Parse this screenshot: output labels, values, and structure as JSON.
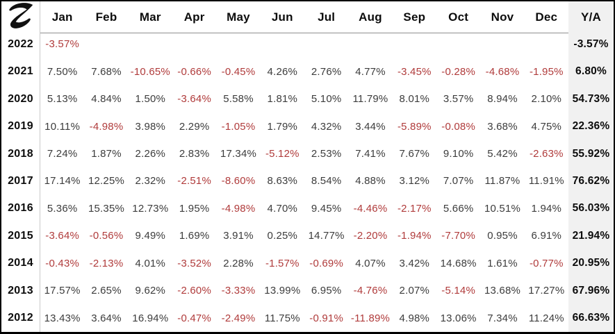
{
  "chart_data": {
    "type": "table",
    "columns": [
      "Jan",
      "Feb",
      "Mar",
      "Apr",
      "May",
      "Jun",
      "Jul",
      "Aug",
      "Sep",
      "Oct",
      "Nov",
      "Dec"
    ],
    "ya_label": "Y/A",
    "rows": [
      {
        "year": "2022",
        "monthly": [
          "-3.57%",
          "",
          "",
          "",
          "",
          "",
          "",
          "",
          "",
          "",
          "",
          ""
        ],
        "yearly": "-3.57%"
      },
      {
        "year": "2021",
        "monthly": [
          "7.50%",
          "7.68%",
          "-10.65%",
          "-0.66%",
          "-0.45%",
          "4.26%",
          "2.76%",
          "4.77%",
          "-3.45%",
          "-0.28%",
          "-4.68%",
          "-1.95%"
        ],
        "yearly": "6.80%"
      },
      {
        "year": "2020",
        "monthly": [
          "5.13%",
          "4.84%",
          "1.50%",
          "-3.64%",
          "5.58%",
          "1.81%",
          "5.10%",
          "11.79%",
          "8.01%",
          "3.57%",
          "8.94%",
          "2.10%"
        ],
        "yearly": "54.73%"
      },
      {
        "year": "2019",
        "monthly": [
          "10.11%",
          "-4.98%",
          "3.98%",
          "2.29%",
          "-1.05%",
          "1.79%",
          "4.32%",
          "3.44%",
          "-5.89%",
          "-0.08%",
          "3.68%",
          "4.75%"
        ],
        "yearly": "22.36%"
      },
      {
        "year": "2018",
        "monthly": [
          "7.24%",
          "1.87%",
          "2.26%",
          "2.83%",
          "17.34%",
          "-5.12%",
          "2.53%",
          "7.41%",
          "7.67%",
          "9.10%",
          "5.42%",
          "-2.63%"
        ],
        "yearly": "55.92%"
      },
      {
        "year": "2017",
        "monthly": [
          "17.14%",
          "12.25%",
          "2.32%",
          "-2.51%",
          "-8.60%",
          "8.63%",
          "8.54%",
          "4.88%",
          "3.12%",
          "7.07%",
          "11.87%",
          "11.91%"
        ],
        "yearly": "76.62%"
      },
      {
        "year": "2016",
        "monthly": [
          "5.36%",
          "15.35%",
          "12.73%",
          "1.95%",
          "-4.98%",
          "4.70%",
          "9.45%",
          "-4.46%",
          "-2.17%",
          "5.66%",
          "10.51%",
          "1.94%"
        ],
        "yearly": "56.03%"
      },
      {
        "year": "2015",
        "monthly": [
          "-3.64%",
          "-0.56%",
          "9.49%",
          "1.69%",
          "3.91%",
          "0.25%",
          "14.77%",
          "-2.20%",
          "-1.94%",
          "-7.70%",
          "0.95%",
          "6.91%"
        ],
        "yearly": "21.94%"
      },
      {
        "year": "2014",
        "monthly": [
          "-0.43%",
          "-2.13%",
          "4.01%",
          "-3.52%",
          "2.28%",
          "-1.57%",
          "-0.69%",
          "4.07%",
          "3.42%",
          "14.68%",
          "1.61%",
          "-0.77%"
        ],
        "yearly": "20.95%"
      },
      {
        "year": "2013",
        "monthly": [
          "17.57%",
          "2.65%",
          "9.62%",
          "-2.60%",
          "-3.33%",
          "13.99%",
          "6.95%",
          "-4.76%",
          "2.07%",
          "-5.14%",
          "13.68%",
          "17.27%"
        ],
        "yearly": "67.96%"
      },
      {
        "year": "2012",
        "monthly": [
          "13.43%",
          "3.64%",
          "16.94%",
          "-0.47%",
          "-2.49%",
          "11.75%",
          "-0.91%",
          "-11.89%",
          "4.98%",
          "13.06%",
          "7.34%",
          "11.24%"
        ],
        "yearly": "66.63%"
      }
    ],
    "colors": {
      "negative_value": "#b03b3b",
      "positive_value": "#3c3c3c",
      "ya_column_background": "#f1f1f1",
      "border": "#000000",
      "logo": "#111111"
    },
    "layout": {
      "grid": "row separators off, header underline on",
      "ya_column": "right, shaded, bold totals"
    }
  }
}
